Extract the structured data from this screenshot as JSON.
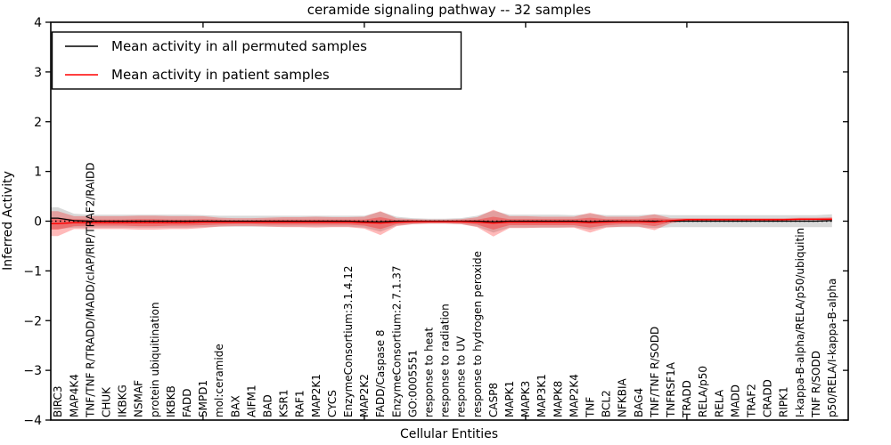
{
  "title": "ceramide signaling pathway -- 32 samples",
  "legend": {
    "entries": [
      {
        "label": "Mean activity in all permuted samples",
        "color": "#000000"
      },
      {
        "label": "Mean activity in patient samples",
        "color": "#ff0000"
      }
    ]
  },
  "chart_data": {
    "type": "line",
    "title": "ceramide signaling pathway -- 32 samples",
    "xlabel": "Cellular Entities",
    "ylabel": "Inferred Activity",
    "ylim": [
      -4,
      4
    ],
    "yticks": [
      -4,
      -3,
      -2,
      -1,
      0,
      1,
      2,
      3,
      4
    ],
    "grid": false,
    "legend_position": "upper left",
    "zero_line": {
      "style": "dotted",
      "color": "#000000",
      "value": 0
    },
    "x_major_tick_indices": [
      9,
      19,
      29,
      39
    ],
    "categories": [
      "BIRC3",
      "MAP4K4",
      "TNF/TNF R/TRADD/MADD/cIAP/RIP/TRAF2/RAIDD",
      "CHUK",
      "IKBKG",
      "NSMAF",
      "protein ubiquitination",
      "IKBKB",
      "FADD",
      "SMPD1",
      "mol:ceramide",
      "BAX",
      "AIFM1",
      "BAD",
      "KSR1",
      "RAF1",
      "MAP2K1",
      "CYCS",
      "EnzymeConsortium:3.1.4.12",
      "MAP2K2",
      "FADD/Caspase 8",
      "EnzymeConsortium:2.7.1.37",
      "GO:0005551",
      "response to heat",
      "response to radiation",
      "response to UV",
      "response to hydrogen peroxide",
      "CASP8",
      "MAPK1",
      "MAPK3",
      "MAP3K1",
      "MAPK8",
      "MAP2K4",
      "TNF",
      "BCL2",
      "NFKBIA",
      "BAG4",
      "TNF/TNF R/SODD",
      "TNFRSF1A",
      "TRADD",
      "RELA/p50",
      "RELA",
      "MADD",
      "TRAF2",
      "CRADD",
      "RIPK1",
      "I-kappa-B-alpha/RELA/p50/ubiquitin",
      "TNF R/SODD",
      "p50/RELA/I-kappa-B-alpha"
    ],
    "series": [
      {
        "name": "Mean activity in all permuted samples",
        "color": "#000000",
        "band_color": "rgba(0,0,0,0.15)",
        "values": [
          0.06,
          0.01,
          0,
          0,
          0,
          0,
          0,
          0,
          0,
          0,
          0,
          0,
          0,
          0,
          0,
          0,
          0,
          0,
          0,
          -0.01,
          -0.01,
          0,
          0,
          0,
          0,
          0,
          0,
          -0.01,
          0,
          0,
          0,
          0,
          0,
          -0.01,
          0,
          0,
          0,
          0,
          0,
          0,
          0,
          0,
          0,
          0,
          0,
          0,
          0,
          0,
          0.01
        ],
        "band_halfwidth": [
          0.22,
          0.14,
          0.13,
          0.13,
          0.13,
          0.13,
          0.13,
          0.13,
          0.13,
          0.12,
          0.11,
          0.11,
          0.11,
          0.11,
          0.11,
          0.11,
          0.11,
          0.11,
          0.11,
          0.12,
          0.2,
          0.09,
          0.06,
          0.05,
          0.05,
          0.06,
          0.11,
          0.22,
          0.13,
          0.13,
          0.13,
          0.13,
          0.12,
          0.16,
          0.12,
          0.12,
          0.12,
          0.14,
          0.12,
          0.12,
          0.12,
          0.12,
          0.12,
          0.12,
          0.12,
          0.12,
          0.12,
          0.12,
          0.13
        ]
      },
      {
        "name": "Mean activity in patient samples",
        "color": "#ff0000",
        "band_color": "rgba(255,0,0,0.27)",
        "band_inner_color": "rgba(255,0,0,0.30)",
        "values": [
          -0.05,
          -0.03,
          -0.03,
          -0.03,
          -0.03,
          -0.03,
          -0.03,
          -0.03,
          -0.03,
          -0.02,
          -0.02,
          -0.02,
          -0.02,
          -0.02,
          -0.02,
          -0.02,
          -0.02,
          -0.02,
          -0.02,
          -0.03,
          -0.04,
          -0.02,
          -0.01,
          -0.01,
          -0.01,
          -0.01,
          -0.02,
          -0.04,
          -0.02,
          -0.02,
          -0.02,
          -0.02,
          -0.02,
          -0.03,
          -0.02,
          -0.01,
          -0.01,
          -0.02,
          0.01,
          0.03,
          0.03,
          0.03,
          0.03,
          0.03,
          0.03,
          0.03,
          0.04,
          0.04,
          0.04
        ],
        "band_halfwidth": [
          0.25,
          0.13,
          0.13,
          0.13,
          0.13,
          0.14,
          0.14,
          0.13,
          0.13,
          0.12,
          0.09,
          0.08,
          0.08,
          0.09,
          0.1,
          0.1,
          0.11,
          0.1,
          0.1,
          0.12,
          0.24,
          0.08,
          0.05,
          0.04,
          0.04,
          0.05,
          0.1,
          0.27,
          0.12,
          0.12,
          0.11,
          0.11,
          0.11,
          0.2,
          0.11,
          0.1,
          0.1,
          0.16,
          0.05,
          0.03,
          0.03,
          0.03,
          0.03,
          0.03,
          0.03,
          0.03,
          0.03,
          0.03,
          0.04
        ],
        "band_inner_halfwidth": [
          0.12,
          0.07,
          0.06,
          0.06,
          0.06,
          0.07,
          0.07,
          0.06,
          0.06,
          0.06,
          0.05,
          0.04,
          0.04,
          0.05,
          0.05,
          0.05,
          0.05,
          0.05,
          0.05,
          0.06,
          0.12,
          0.04,
          0.03,
          0.02,
          0.02,
          0.03,
          0.05,
          0.13,
          0.06,
          0.06,
          0.06,
          0.06,
          0.06,
          0.1,
          0.06,
          0.05,
          0.05,
          0.08,
          0.03,
          0.015,
          0.015,
          0.015,
          0.015,
          0.015,
          0.015,
          0.015,
          0.015,
          0.015,
          0.02
        ]
      }
    ]
  }
}
